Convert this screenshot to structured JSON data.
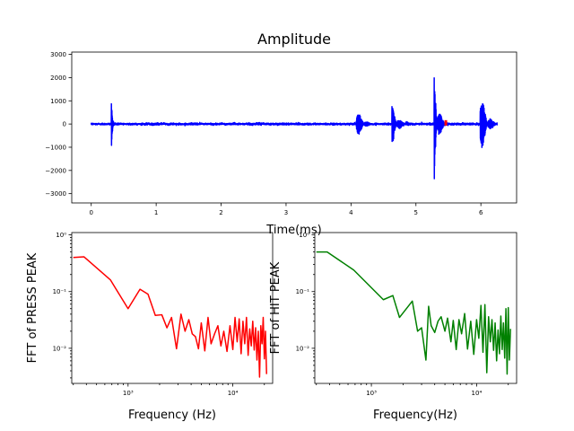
{
  "chart_data": [
    {
      "type": "line",
      "title": "Amplitude",
      "xlabel": "Time(ms)",
      "ylabel": "",
      "xlim": [
        -0.3,
        6.55
      ],
      "ylim": [
        -3400,
        3100
      ],
      "x_ticks": [
        0,
        1,
        2,
        3,
        4,
        5,
        6
      ],
      "x_tick_labels": [
        "0",
        "1",
        "2",
        "3",
        "4",
        "5",
        "6"
      ],
      "y_ticks": [
        -3000,
        -2000,
        -1000,
        0,
        1000,
        2000,
        3000
      ],
      "y_tick_labels": [
        "−3000",
        "−2000",
        "−1000",
        "0",
        "1000",
        "2000",
        "3000"
      ],
      "series": [
        {
          "color": "#0000ff",
          "noise_level": 40,
          "x_range": [
            0,
            6.25
          ],
          "events": [
            {
              "t": 0.31,
              "amp": 1400,
              "decay": 0.012
            },
            {
              "t": 4.08,
              "amp": 900,
              "decay": 0.07
            },
            {
              "t": 4.63,
              "amp": 1000,
              "decay": 0.07
            },
            {
              "t": 5.28,
              "amp": 3000,
              "decay": 0.05
            },
            {
              "t": 5.99,
              "amp": 1600,
              "decay": 0.08
            }
          ]
        }
      ],
      "marker": {
        "x": 5.46,
        "y": 50,
        "color": "#ff0000"
      },
      "grid": false
    },
    {
      "type": "line",
      "title": "",
      "xlabel": "Frequency (Hz)",
      "ylabel": "FFT of PRESS PEAK",
      "xscale": "log",
      "yscale": "log",
      "xlim": [
        290,
        24000
      ],
      "ylim": [
        0.0024,
        1.1
      ],
      "x_ticks": [
        1000,
        10000
      ],
      "x_tick_labels": [
        "10³",
        "10⁴"
      ],
      "y_ticks": [
        0.01,
        0.1,
        1
      ],
      "y_tick_labels": [
        "10⁻²",
        "10⁻¹",
        "10⁰"
      ],
      "series": [
        {
          "color": "#ff0000",
          "x": [
            300,
            380,
            680,
            1000,
            1300,
            1550,
            1820,
            2100,
            2350,
            2600,
            2900,
            3200,
            3500,
            3800,
            4100,
            4400,
            4700,
            5000,
            5400,
            5800,
            6200,
            6700,
            7200,
            7700,
            8200,
            8800,
            9400,
            10000,
            10500,
            11000,
            11500,
            12000,
            12500,
            13000,
            13500,
            14000,
            14500,
            15000,
            15500,
            16000,
            16500,
            17000,
            17500,
            18000,
            18500,
            19000,
            19500,
            20000,
            20500,
            21000
          ],
          "y": [
            0.4,
            0.41,
            0.16,
            0.05,
            0.11,
            0.09,
            0.038,
            0.039,
            0.023,
            0.035,
            0.0098,
            0.04,
            0.02,
            0.032,
            0.018,
            0.016,
            0.0098,
            0.028,
            0.009,
            0.035,
            0.012,
            0.018,
            0.025,
            0.011,
            0.02,
            0.0088,
            0.025,
            0.0095,
            0.035,
            0.013,
            0.033,
            0.008,
            0.03,
            0.012,
            0.035,
            0.0075,
            0.022,
            0.011,
            0.03,
            0.0093,
            0.023,
            0.0062,
            0.02,
            0.0031,
            0.025,
            0.012,
            0.035,
            0.0065,
            0.02,
            0.0035
          ]
        }
      ],
      "grid": false
    },
    {
      "type": "line",
      "title": "",
      "xlabel": "Frequency(Hz)",
      "ylabel": "FFT of HIT PEAK",
      "xscale": "log",
      "yscale": "log",
      "xlim": [
        290,
        24000
      ],
      "ylim": [
        0.0024,
        1.1
      ],
      "x_ticks": [
        1000,
        10000
      ],
      "x_tick_labels": [
        "10³",
        "10⁴"
      ],
      "y_ticks": [
        0.01,
        0.1,
        1
      ],
      "y_tick_labels": [
        "10⁻²",
        "10⁻¹",
        "10⁰"
      ],
      "series": [
        {
          "color": "#008000",
          "x": [
            300,
            380,
            680,
            1300,
            1600,
            1850,
            2450,
            2750,
            3000,
            3300,
            3500,
            3700,
            4000,
            4300,
            4600,
            5000,
            5300,
            5700,
            6000,
            6400,
            6800,
            7200,
            7700,
            8200,
            8800,
            9400,
            10000,
            10500,
            11000,
            11500,
            12000,
            12500,
            13000,
            13500,
            14000,
            14500,
            15000,
            15500,
            16000,
            16500,
            17000,
            17500,
            18000,
            18500,
            19000,
            19500,
            20000,
            20500,
            21000
          ],
          "y": [
            0.5,
            0.5,
            0.24,
            0.072,
            0.085,
            0.035,
            0.068,
            0.02,
            0.023,
            0.0062,
            0.055,
            0.025,
            0.019,
            0.03,
            0.036,
            0.02,
            0.034,
            0.013,
            0.031,
            0.0095,
            0.032,
            0.018,
            0.041,
            0.0097,
            0.03,
            0.0078,
            0.032,
            0.015,
            0.057,
            0.0085,
            0.059,
            0.0037,
            0.036,
            0.013,
            0.032,
            0.0092,
            0.028,
            0.006,
            0.021,
            0.008,
            0.037,
            0.0095,
            0.028,
            0.0067,
            0.05,
            0.0035,
            0.052,
            0.0062,
            0.022
          ]
        }
      ],
      "grid": false
    }
  ]
}
